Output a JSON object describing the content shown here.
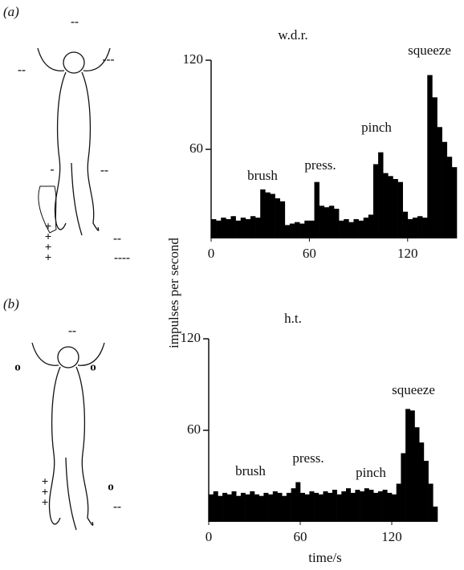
{
  "panels": [
    {
      "label": "(a)",
      "marks": [
        "--",
        "---",
        "--",
        "-",
        "--",
        "+",
        "+",
        "+",
        "+",
        "--",
        "----"
      ]
    },
    {
      "label": "(b)",
      "marks": [
        "--",
        "o",
        "o",
        "+",
        "+",
        "+",
        "o",
        "--"
      ]
    }
  ],
  "chart_data": [
    {
      "type": "histogram",
      "title": "w.d.r.",
      "y_label": "impulses per second",
      "color": "#000000",
      "annotations": [
        "brush",
        "press.",
        "pinch",
        "squeeze"
      ],
      "bins": [
        0,
        3,
        6,
        9,
        12,
        15,
        18,
        21,
        24,
        27,
        30,
        33,
        36,
        39,
        42,
        45,
        48,
        51,
        54,
        57,
        60,
        63,
        66,
        69,
        72,
        75,
        78,
        81,
        84,
        87,
        90,
        93,
        96,
        99,
        102,
        105,
        108,
        111,
        114,
        117,
        120,
        123,
        126,
        129,
        132,
        135,
        138,
        141,
        144,
        147,
        150
      ],
      "values": [
        13,
        12,
        14,
        13,
        15,
        12,
        14,
        13,
        15,
        14,
        33,
        31,
        30,
        27,
        25,
        9,
        10,
        11,
        10,
        12,
        12,
        38,
        22,
        21,
        22,
        20,
        12,
        13,
        11,
        13,
        12,
        14,
        16,
        50,
        58,
        44,
        42,
        40,
        38,
        18,
        13,
        14,
        15,
        14,
        110,
        95,
        75,
        65,
        55,
        48
      ],
      "xlim": [
        0,
        150
      ],
      "ylim": [
        0,
        120
      ],
      "xticks": [
        0,
        60,
        120
      ],
      "yticks": [
        60,
        120
      ]
    },
    {
      "type": "histogram",
      "title": "h.t.",
      "x_label": "time/s",
      "color": "#000000",
      "annotations": [
        "brush",
        "press.",
        "pinch",
        "squeeze"
      ],
      "bins": [
        0,
        3,
        6,
        9,
        12,
        15,
        18,
        21,
        24,
        27,
        30,
        33,
        36,
        39,
        42,
        45,
        48,
        51,
        54,
        57,
        60,
        63,
        66,
        69,
        72,
        75,
        78,
        81,
        84,
        87,
        90,
        93,
        96,
        99,
        102,
        105,
        108,
        111,
        114,
        117,
        120,
        123,
        126,
        129,
        132,
        135,
        138,
        141,
        144,
        147,
        150
      ],
      "values": [
        18,
        20,
        17,
        19,
        18,
        20,
        17,
        19,
        18,
        20,
        18,
        17,
        19,
        18,
        20,
        19,
        17,
        19,
        22,
        26,
        19,
        18,
        20,
        19,
        18,
        20,
        19,
        21,
        18,
        20,
        22,
        19,
        21,
        20,
        22,
        21,
        19,
        20,
        21,
        19,
        18,
        25,
        45,
        74,
        73,
        62,
        52,
        40,
        25,
        10
      ],
      "xlim": [
        0,
        150
      ],
      "ylim": [
        0,
        120
      ],
      "xticks": [
        0,
        60,
        120
      ],
      "yticks": [
        60,
        120
      ]
    }
  ]
}
